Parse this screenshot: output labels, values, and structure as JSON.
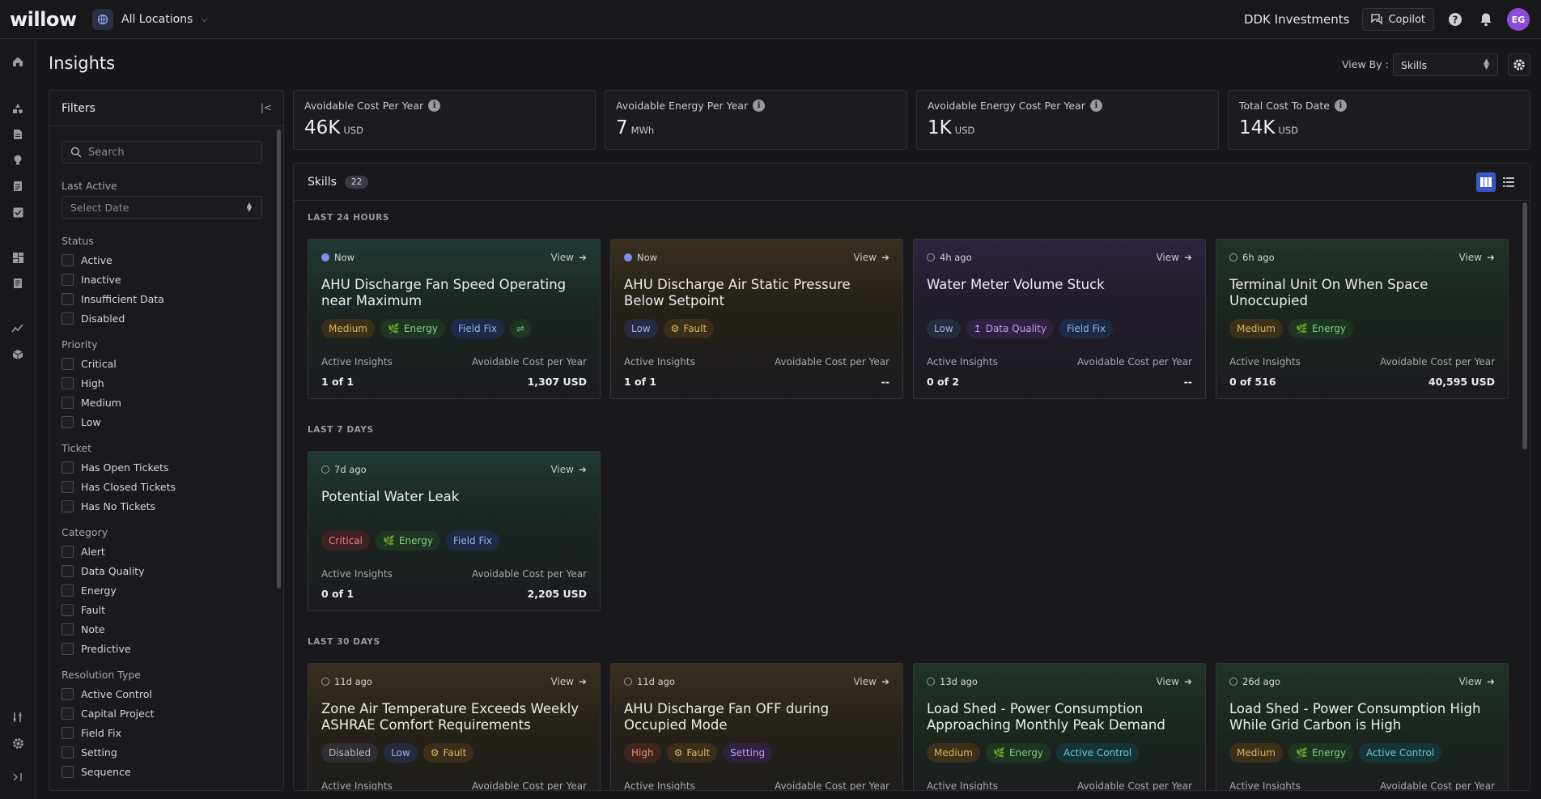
{
  "app": {
    "logo": "willow",
    "location": "All Locations",
    "org": "DDK Investments",
    "copilot": "Copilot",
    "avatar_initials": "EG"
  },
  "rail": {
    "icons": [
      "home-icon",
      "portfolio-icon",
      "reports-icon",
      "insights-icon",
      "tickets-icon",
      "tasks-icon",
      "dashboards-icon",
      "docs-icon",
      "timeseries-icon",
      "models-icon",
      "connectors-icon",
      "admin-icon",
      "expand-icon"
    ]
  },
  "page": {
    "title": "Insights",
    "viewby_label": "View By :",
    "viewby_value": "Skills"
  },
  "filters": {
    "title": "Filters",
    "search_placeholder": "Search",
    "last_active": "Last Active",
    "date_placeholder": "Select Date",
    "status": {
      "label": "Status",
      "items": [
        "Active",
        "Inactive",
        "Insufficient Data",
        "Disabled"
      ]
    },
    "priority": {
      "label": "Priority",
      "items": [
        "Critical",
        "High",
        "Medium",
        "Low"
      ]
    },
    "ticket": {
      "label": "Ticket",
      "items": [
        "Has Open Tickets",
        "Has Closed Tickets",
        "Has No Tickets"
      ]
    },
    "category": {
      "label": "Category",
      "items": [
        "Alert",
        "Data Quality",
        "Energy",
        "Fault",
        "Note",
        "Predictive"
      ]
    },
    "resolution": {
      "label": "Resolution Type",
      "items": [
        "Active Control",
        "Capital Project",
        "Field Fix",
        "Setting",
        "Sequence"
      ]
    }
  },
  "metrics": [
    {
      "label": "Avoidable Cost Per Year",
      "value": "46K",
      "unit": "USD"
    },
    {
      "label": "Avoidable Energy Per Year",
      "value": "7",
      "unit": "MWh"
    },
    {
      "label": "Avoidable Energy Cost Per Year",
      "value": "1K",
      "unit": "USD"
    },
    {
      "label": "Total Cost To Date",
      "value": "14K",
      "unit": "USD"
    }
  ],
  "skills": {
    "title": "Skills",
    "count": "22",
    "groups": [
      "LAST 24 HOURS",
      "LAST 7 DAYS",
      "LAST 30 DAYS"
    ],
    "stat_label_left": "Active Insights",
    "stat_label_right": "Avoidable Cost per Year",
    "view_label": "View",
    "cards": [
      {
        "time": "Now",
        "title": "AHU Discharge Fan Speed Operating near Maximum",
        "tags": [
          "Medium",
          "Energy",
          "Field Fix"
        ],
        "active": "1 of 1",
        "cost": "1,307 USD"
      },
      {
        "time": "Now",
        "title": "AHU Discharge Air Static Pressure Below Setpoint",
        "tags": [
          "Low",
          "Fault"
        ],
        "active": "1 of 1",
        "cost": "--"
      },
      {
        "time": "4h ago",
        "title": "Water Meter Volume Stuck",
        "tags": [
          "Low",
          "Data Quality",
          "Field Fix"
        ],
        "active": "0 of 2",
        "cost": "--"
      },
      {
        "time": "6h ago",
        "title": "Terminal Unit On When Space Unoccupied",
        "tags": [
          "Medium",
          "Energy"
        ],
        "active": "0 of 516",
        "cost": "40,595 USD"
      },
      {
        "time": "7d ago",
        "title": "Potential Water Leak",
        "tags": [
          "Critical",
          "Energy",
          "Field Fix"
        ],
        "active": "0 of 1",
        "cost": "2,205 USD"
      },
      {
        "time": "11d ago",
        "title": "Zone Air Temperature Exceeds Weekly ASHRAE Comfort Requirements",
        "tags": [
          "Disabled",
          "Low",
          "Fault"
        ],
        "active": "",
        "cost": ""
      },
      {
        "time": "11d ago",
        "title": "AHU Discharge Fan OFF during Occupied Mode",
        "tags": [
          "High",
          "Fault",
          "Setting"
        ],
        "active": "",
        "cost": ""
      },
      {
        "time": "13d ago",
        "title": "Load Shed - Power Consumption Approaching Monthly Peak Demand",
        "tags": [
          "Medium",
          "Energy",
          "Active Control"
        ],
        "active": "",
        "cost": ""
      },
      {
        "time": "26d ago",
        "title": "Load Shed - Power Consumption High While Grid Carbon is High",
        "tags": [
          "Medium",
          "Energy",
          "Active Control"
        ],
        "active": "",
        "cost": ""
      }
    ]
  }
}
